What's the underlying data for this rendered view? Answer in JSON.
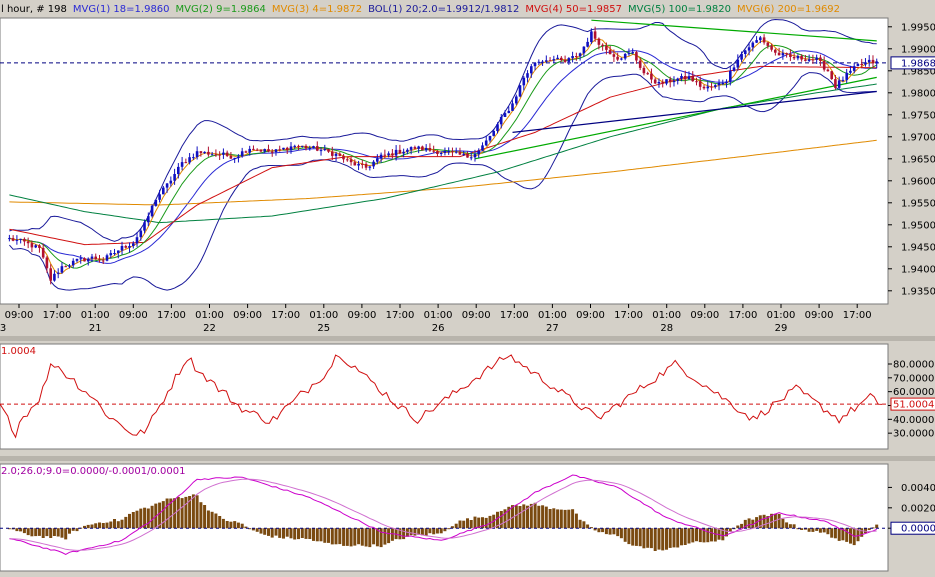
{
  "header": {
    "items": [
      {
        "text": "l hour, # 198",
        "color": "#000000"
      },
      {
        "text": "MVG(1) 18=1.9860",
        "color": "#2a2ad4"
      },
      {
        "text": "MVG(2) 9=1.9864",
        "color": "#1a9a1a"
      },
      {
        "text": "MVG(3) 4=1.9872",
        "color": "#e08a00"
      },
      {
        "text": "BOL(1) 20;2.0=1.9912/1.9812",
        "color": "#1a1a9a"
      },
      {
        "text": "MVG(4) 50=1.9857",
        "color": "#d01010"
      },
      {
        "text": "MVG(5) 100=1.9820",
        "color": "#008040"
      },
      {
        "text": "MVG(6) 200=1.9692",
        "color": "#e08a00"
      }
    ]
  },
  "colors": {
    "up_candle": "#1010c0",
    "down_candle": "#b01030",
    "mvg_18": "#2a2ad4",
    "mvg_9": "#1a9a1a",
    "mvg_4": "#e08a00",
    "bollinger": "#1a1a9a",
    "mvg_50": "#d01010",
    "mvg_100": "#008040",
    "mvg_200": "#e08a00",
    "trend_green": "#00aa00",
    "trend_navy": "#000080",
    "current_price": "#000080",
    "rsi_line": "#d01010",
    "macd_signal": "#cc00cc",
    "macd_line": "#d070d0",
    "macd_hist": "#7a4a10"
  },
  "chart_data": [
    {
      "type": "candlestick",
      "ylim": [
        1.932,
        1.997
      ],
      "y_ticks": [
        "1.9950",
        "1.9900",
        "1.9850",
        "1.9800",
        "1.9750",
        "1.9700",
        "1.9650",
        "1.9600",
        "1.9550",
        "1.9500",
        "1.9450",
        "1.9400",
        "1.9350"
      ],
      "current_price": "1.9868",
      "current_value": 1.9868,
      "x_tick_times": [
        "09:00",
        "17:00",
        "01:00",
        "09:00",
        "17:00",
        "01:00",
        "09:00",
        "17:00",
        "01:00",
        "09:00",
        "17:00",
        "01:00",
        "09:00",
        "17:00",
        "01:00",
        "09:00",
        "17:00",
        "01:00",
        "09:00",
        "17:00",
        "01:00",
        "09:00",
        "17:00"
      ],
      "x_tick_dates": [
        "3",
        "21",
        "22",
        "25",
        "26",
        "27",
        "28",
        "29"
      ],
      "anchors": [
        [
          0,
          1.9468
        ],
        [
          4,
          1.946
        ],
        [
          8,
          1.9445
        ],
        [
          11,
          1.9375
        ],
        [
          14,
          1.9405
        ],
        [
          18,
          1.9418
        ],
        [
          22,
          1.9425
        ],
        [
          25,
          1.942
        ],
        [
          30,
          1.9448
        ],
        [
          33,
          1.946
        ],
        [
          36,
          1.95
        ],
        [
          39,
          1.956
        ],
        [
          42,
          1.959
        ],
        [
          46,
          1.964
        ],
        [
          50,
          1.9665
        ],
        [
          56,
          1.966
        ],
        [
          60,
          1.9655
        ],
        [
          64,
          1.9675
        ],
        [
          70,
          1.9665
        ],
        [
          76,
          1.968
        ],
        [
          82,
          1.9672
        ],
        [
          87,
          1.966
        ],
        [
          91,
          1.964
        ],
        [
          95,
          1.963
        ],
        [
          99,
          1.9655
        ],
        [
          103,
          1.9665
        ],
        [
          108,
          1.9675
        ],
        [
          113,
          1.9668
        ],
        [
          118,
          1.9662
        ],
        [
          122,
          1.9655
        ],
        [
          125,
          1.9668
        ],
        [
          128,
          1.97
        ],
        [
          131,
          1.974
        ],
        [
          134,
          1.9775
        ],
        [
          137,
          1.9835
        ],
        [
          140,
          1.987
        ],
        [
          144,
          1.9878
        ],
        [
          148,
          1.987
        ],
        [
          152,
          1.989
        ],
        [
          155,
          1.9935
        ],
        [
          158,
          1.9905
        ],
        [
          162,
          1.988
        ],
        [
          166,
          1.989
        ],
        [
          169,
          1.9845
        ],
        [
          173,
          1.982
        ],
        [
          177,
          1.983
        ],
        [
          181,
          1.9835
        ],
        [
          185,
          1.981
        ],
        [
          188,
          1.9815
        ],
        [
          191,
          1.983
        ],
        [
          194,
          1.988
        ],
        [
          197,
          1.9905
        ],
        [
          200,
          1.9925
        ],
        [
          204,
          1.989
        ],
        [
          208,
          1.988
        ],
        [
          212,
          1.9878
        ],
        [
          215,
          1.9875
        ],
        [
          218,
          1.985
        ],
        [
          220,
          1.9815
        ],
        [
          223,
          1.984
        ],
        [
          226,
          1.9862
        ],
        [
          229,
          1.987
        ],
        [
          231,
          1.9868
        ]
      ],
      "mvg_200": [
        [
          0,
          1.9552
        ],
        [
          40,
          1.9545
        ],
        [
          80,
          1.956
        ],
        [
          120,
          1.9585
        ],
        [
          160,
          1.962
        ],
        [
          200,
          1.966
        ],
        [
          231,
          1.9692
        ]
      ],
      "mvg_100": [
        [
          0,
          1.9568
        ],
        [
          20,
          1.953
        ],
        [
          40,
          1.9505
        ],
        [
          70,
          1.952
        ],
        [
          100,
          1.956
        ],
        [
          130,
          1.962
        ],
        [
          160,
          1.97
        ],
        [
          190,
          1.9765
        ],
        [
          215,
          1.98
        ],
        [
          231,
          1.982
        ]
      ],
      "mvg_50": [
        [
          0,
          1.949
        ],
        [
          20,
          1.9455
        ],
        [
          36,
          1.946
        ],
        [
          50,
          1.9545
        ],
        [
          70,
          1.963
        ],
        [
          90,
          1.9655
        ],
        [
          120,
          1.9655
        ],
        [
          140,
          1.971
        ],
        [
          160,
          1.979
        ],
        [
          180,
          1.9835
        ],
        [
          200,
          1.986
        ],
        [
          231,
          1.9857
        ]
      ],
      "trend_green": [
        [
          [
            124,
            1.965
          ],
          [
            231,
            1.9835
          ]
        ],
        [
          [
            155,
            1.9965
          ],
          [
            231,
            1.9918
          ]
        ]
      ],
      "trend_navy": [
        [
          [
            134,
            1.971
          ],
          [
            231,
            1.9803
          ]
        ]
      ],
      "x_start": -2.5,
      "x_end": 234
    },
    {
      "type": "line",
      "name": "RSI",
      "label": "1.0004",
      "ylim": [
        20,
        93
      ],
      "y_ticks": [
        "80.0000",
        "70.0000",
        "60.0000",
        "50.0000",
        "40.0000",
        "30.0000"
      ],
      "y_tick_values": [
        80,
        70,
        60,
        50,
        40,
        30
      ],
      "current": "51.0004",
      "current_value": 51.0004,
      "values": [
        50,
        45,
        40,
        35,
        30,
        38,
        42,
        45,
        48,
        52,
        55,
        62,
        70,
        78,
        80,
        78,
        75,
        72,
        70,
        68,
        65,
        62,
        60,
        58,
        55,
        52,
        48,
        45,
        42,
        40,
        38,
        36,
        34,
        32,
        30,
        28,
        30,
        32,
        35,
        40,
        45,
        50,
        55,
        60,
        65,
        70,
        75,
        80,
        85,
        82,
        78,
        75,
        72,
        70,
        68,
        65,
        62,
        60,
        58,
        55,
        52,
        50,
        48,
        46,
        45,
        44,
        43,
        42,
        40,
        38,
        40,
        42,
        45,
        48,
        50,
        52,
        55,
        58,
        60,
        62,
        65,
        68,
        70,
        72,
        75,
        80,
        85,
        88,
        85,
        82,
        80,
        78,
        75,
        72,
        70,
        68,
        65,
        62,
        60,
        58,
        55,
        52,
        50,
        48,
        46,
        44,
        42,
        40,
        42,
        44,
        46,
        48,
        50,
        52,
        54,
        56,
        58,
        60,
        62,
        64,
        66,
        68,
        70,
        72,
        74,
        76,
        78,
        80,
        82,
        84,
        86,
        85,
        83,
        81,
        79,
        77,
        75,
        73,
        71,
        69,
        67,
        65,
        63,
        61,
        59,
        57,
        55,
        53,
        51,
        49,
        47,
        45,
        43,
        41,
        42,
        44,
        46,
        48,
        50,
        52,
        54,
        56,
        58,
        60,
        62,
        64,
        66,
        68,
        70,
        72,
        74,
        76,
        78,
        80,
        78,
        76,
        74,
        72,
        70,
        68,
        66,
        64,
        62,
        60,
        58,
        56,
        54,
        52,
        50,
        48,
        46,
        44,
        42,
        40,
        42,
        44,
        46,
        48,
        50,
        52,
        54,
        56,
        58,
        60,
        62,
        60,
        58,
        56,
        54,
        52,
        50,
        48,
        46,
        44,
        42,
        40,
        42,
        44,
        46,
        48,
        50,
        52,
        54,
        56,
        54,
        52,
        51
      ]
    },
    {
      "type": "bar+line",
      "name": "MACD",
      "label": "2.0;26.0;9.0=0.0000/-0.0001/0.0001",
      "ylim": [
        -0.004,
        0.0061
      ],
      "y_ticks": [
        "0.0040",
        "0.0020",
        "0.0000"
      ],
      "y_tick_values": [
        0.004,
        0.002,
        0.0
      ],
      "current": "0.0000",
      "current_value": 0.0
    }
  ]
}
